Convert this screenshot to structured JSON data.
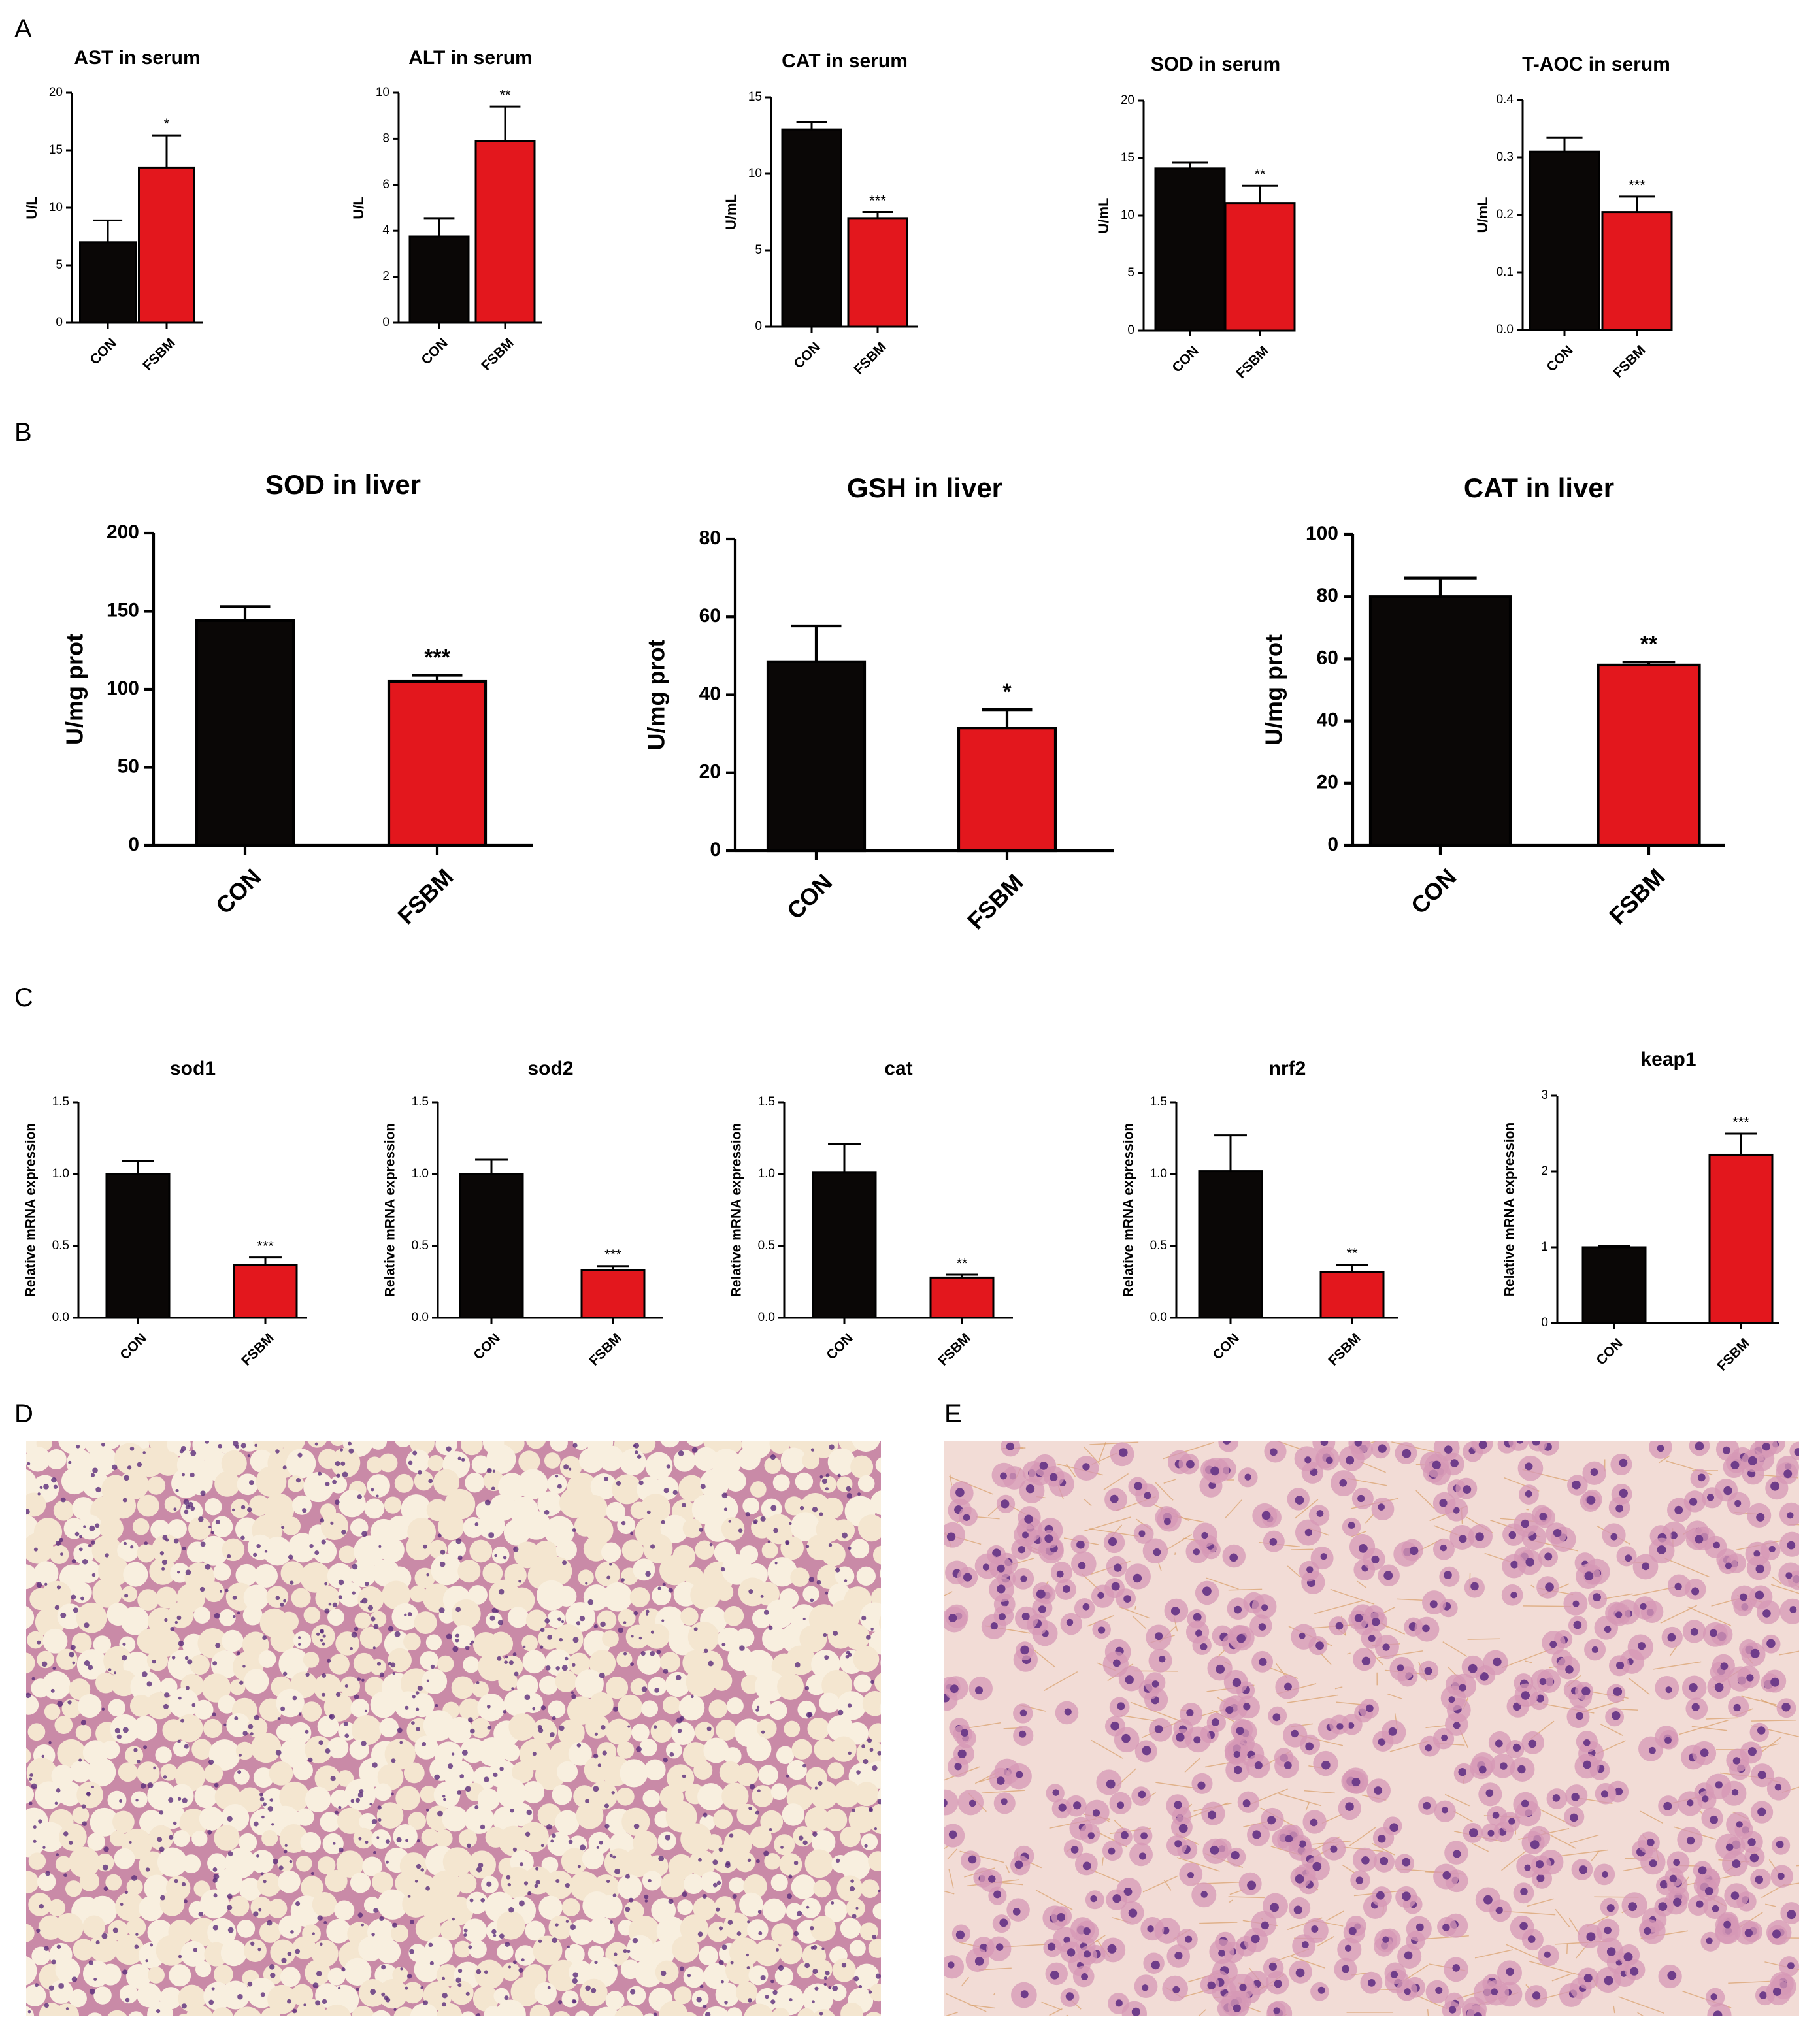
{
  "panels": {
    "A": "A",
    "B": "B",
    "C": "C",
    "D": "D",
    "E": "E"
  },
  "colors": {
    "con": "#0a0706",
    "fsbm": "#e3171d",
    "axis": "#000000"
  },
  "chart_data": [
    {
      "id": "ast",
      "panel": "A",
      "type": "bar",
      "title": "AST in serum",
      "ylabel": "U/L",
      "categories": [
        "CON",
        "FSBM"
      ],
      "values": [
        7.0,
        13.5
      ],
      "errors": [
        1.9,
        2.8
      ],
      "ylim": [
        0,
        20
      ],
      "yticks": [
        "0",
        "5",
        "10",
        "15",
        "20"
      ],
      "significance": [
        "",
        "*"
      ]
    },
    {
      "id": "alt",
      "panel": "A",
      "type": "bar",
      "title": "ALT in serum",
      "ylabel": "U/L",
      "categories": [
        "CON",
        "FSBM"
      ],
      "values": [
        3.75,
        7.9
      ],
      "errors": [
        0.8,
        1.5
      ],
      "ylim": [
        0,
        10
      ],
      "yticks": [
        "0",
        "2",
        "4",
        "6",
        "8",
        "10"
      ],
      "significance": [
        "",
        "**"
      ]
    },
    {
      "id": "cat_serum",
      "panel": "A",
      "type": "bar",
      "title": "CAT in serum",
      "ylabel": "U/mL",
      "categories": [
        "CON",
        "FSBM"
      ],
      "values": [
        12.9,
        7.1
      ],
      "errors": [
        0.5,
        0.4
      ],
      "ylim": [
        0,
        15
      ],
      "yticks": [
        "0",
        "5",
        "10",
        "15"
      ],
      "significance": [
        "",
        "***"
      ]
    },
    {
      "id": "sod_serum",
      "panel": "A",
      "type": "bar",
      "title": "SOD in serum",
      "ylabel": "U/mL",
      "categories": [
        "CON",
        "FSBM"
      ],
      "values": [
        14.1,
        11.1
      ],
      "errors": [
        0.5,
        1.5
      ],
      "ylim": [
        0,
        20
      ],
      "yticks": [
        "0",
        "5",
        "10",
        "15",
        "20"
      ],
      "significance": [
        "",
        "**"
      ]
    },
    {
      "id": "taoc",
      "panel": "A",
      "type": "bar",
      "title": "T-AOC in serum",
      "ylabel": "U/mL",
      "categories": [
        "CON",
        "FSBM"
      ],
      "values": [
        0.31,
        0.205
      ],
      "errors": [
        0.025,
        0.027
      ],
      "ylim": [
        0,
        0.4
      ],
      "yticks": [
        "0.0",
        "0.1",
        "0.2",
        "0.3",
        "0.4"
      ],
      "significance": [
        "",
        "***"
      ]
    },
    {
      "id": "sod_liver",
      "panel": "B",
      "type": "bar",
      "title": "SOD in liver",
      "ylabel": "U/mg prot",
      "categories": [
        "CON",
        "FSBM"
      ],
      "values": [
        144,
        105
      ],
      "errors": [
        9,
        4
      ],
      "ylim": [
        0,
        200
      ],
      "yticks": [
        "0",
        "50",
        "100",
        "150",
        "200"
      ],
      "significance": [
        "",
        "***"
      ]
    },
    {
      "id": "gsh_liver",
      "panel": "B",
      "type": "bar",
      "title": "GSH in liver",
      "ylabel": "U/mg prot",
      "categories": [
        "CON",
        "FSBM"
      ],
      "values": [
        48.5,
        31.5
      ],
      "errors": [
        9.2,
        4.7
      ],
      "ylim": [
        0,
        80
      ],
      "yticks": [
        "0",
        "20",
        "40",
        "60",
        "80"
      ],
      "significance": [
        "",
        "*"
      ]
    },
    {
      "id": "cat_liver",
      "panel": "B",
      "type": "bar",
      "title": "CAT in liver",
      "ylabel": "U/mg prot",
      "categories": [
        "CON",
        "FSBM"
      ],
      "values": [
        80,
        58
      ],
      "errors": [
        6,
        1
      ],
      "ylim": [
        0,
        100
      ],
      "yticks": [
        "0",
        "20",
        "40",
        "60",
        "80",
        "100"
      ],
      "significance": [
        "",
        "**"
      ]
    },
    {
      "id": "sod1",
      "panel": "C",
      "type": "bar",
      "title": "sod1",
      "ylabel": "Relative mRNA expression",
      "categories": [
        "CON",
        "FSBM"
      ],
      "values": [
        1.0,
        0.37
      ],
      "errors": [
        0.09,
        0.05
      ],
      "ylim": [
        0,
        1.5
      ],
      "yticks": [
        "0.0",
        "0.5",
        "1.0",
        "1.5"
      ],
      "significance": [
        "",
        "***"
      ]
    },
    {
      "id": "sod2",
      "panel": "C",
      "type": "bar",
      "title": "sod2",
      "ylabel": "Relative mRNA expression",
      "categories": [
        "CON",
        "FSBM"
      ],
      "values": [
        1.0,
        0.33
      ],
      "errors": [
        0.1,
        0.03
      ],
      "ylim": [
        0,
        1.5
      ],
      "yticks": [
        "0.0",
        "0.5",
        "1.0",
        "1.5"
      ],
      "significance": [
        "",
        "***"
      ]
    },
    {
      "id": "cat",
      "panel": "C",
      "type": "bar",
      "title": "cat",
      "ylabel": "Relative mRNA expression",
      "categories": [
        "CON",
        "FSBM"
      ],
      "values": [
        1.01,
        0.28
      ],
      "errors": [
        0.2,
        0.02
      ],
      "ylim": [
        0,
        1.5
      ],
      "yticks": [
        "0.0",
        "0.5",
        "1.0",
        "1.5"
      ],
      "significance": [
        "",
        "**"
      ]
    },
    {
      "id": "nrf2",
      "panel": "C",
      "type": "bar",
      "title": "nrf2",
      "ylabel": "Relative mRNA expression",
      "categories": [
        "CON",
        "FSBM"
      ],
      "values": [
        1.02,
        0.32
      ],
      "errors": [
        0.25,
        0.05
      ],
      "ylim": [
        0,
        1.5
      ],
      "yticks": [
        "0.0",
        "0.5",
        "1.0",
        "1.5"
      ],
      "significance": [
        "",
        "**"
      ]
    },
    {
      "id": "keap1",
      "panel": "C",
      "type": "bar",
      "title": "keap1",
      "ylabel": "Relative mRNA expression",
      "categories": [
        "CON",
        "FSBM"
      ],
      "values": [
        1.0,
        2.22
      ],
      "errors": [
        0.02,
        0.28
      ],
      "ylim": [
        0,
        3
      ],
      "yticks": [
        "0",
        "1",
        "2",
        "3"
      ],
      "significance": [
        "",
        "***"
      ]
    }
  ]
}
